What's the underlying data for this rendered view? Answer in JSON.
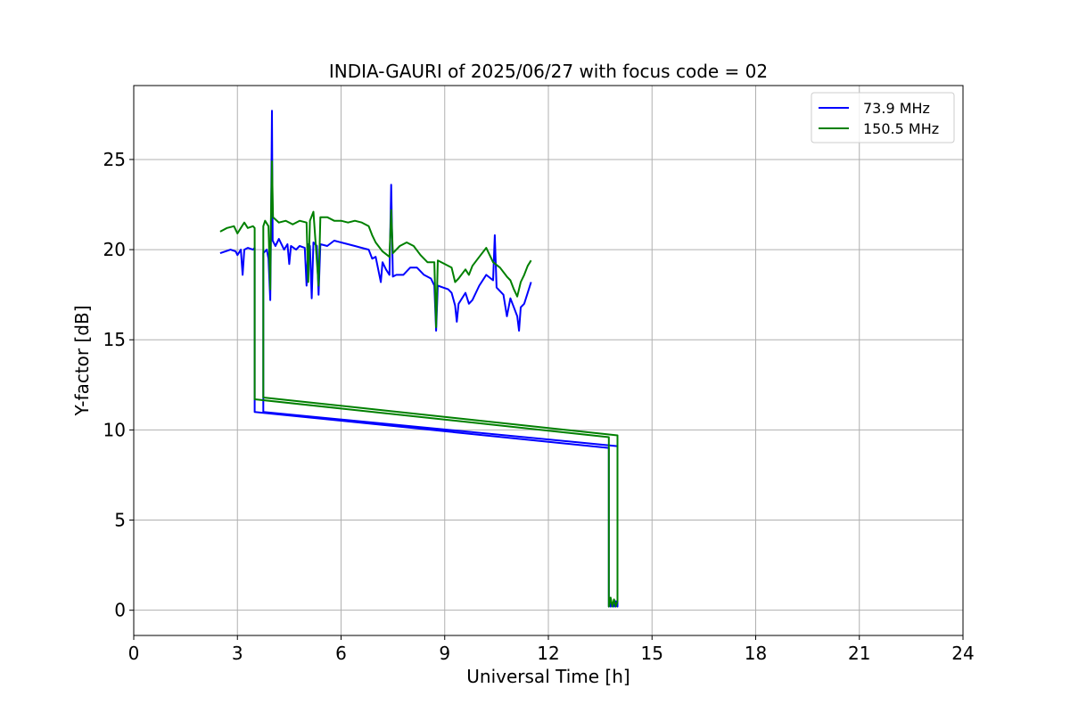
{
  "chart_data": {
    "type": "line",
    "title": "INDIA-GAURI of 2025/06/27 with focus code = 02",
    "xlabel": "Universal Time [h]",
    "ylabel": "Y-factor [dB]",
    "xlim": [
      0,
      24
    ],
    "ylim": [
      -1.4,
      29.1
    ],
    "xticks": [
      0,
      3,
      6,
      9,
      12,
      15,
      18,
      21,
      24
    ],
    "yticks": [
      0,
      5,
      10,
      15,
      20,
      25
    ],
    "grid": true,
    "legend_position": "top-right",
    "series": [
      {
        "name": " 73.9 MHz",
        "color": "#0000ff",
        "points": [
          [
            2.5,
            19.8
          ],
          [
            2.8,
            20.0
          ],
          [
            2.95,
            19.9
          ],
          [
            3.0,
            19.7
          ],
          [
            3.1,
            20.0
          ],
          [
            3.15,
            18.6
          ],
          [
            3.2,
            20.0
          ],
          [
            3.3,
            20.1
          ],
          [
            3.45,
            20.0
          ],
          [
            3.5,
            20.1
          ],
          [
            3.5,
            11.0
          ],
          [
            13.75,
            9.0
          ],
          [
            13.75,
            0.2
          ],
          [
            13.78,
            0.6
          ],
          [
            13.8,
            0.2
          ],
          [
            13.85,
            0.4
          ],
          [
            13.9,
            0.2
          ],
          [
            13.95,
            0.5
          ],
          [
            14.0,
            0.2
          ],
          [
            14.0,
            9.1
          ],
          [
            3.75,
            11.0
          ],
          [
            3.75,
            19.8
          ],
          [
            3.85,
            20.0
          ],
          [
            3.9,
            19.5
          ],
          [
            3.95,
            17.2
          ],
          [
            3.97,
            20.4
          ],
          [
            4.0,
            27.7
          ],
          [
            4.02,
            20.5
          ],
          [
            4.1,
            20.2
          ],
          [
            4.2,
            20.6
          ],
          [
            4.35,
            20.0
          ],
          [
            4.45,
            20.3
          ],
          [
            4.5,
            19.2
          ],
          [
            4.55,
            20.2
          ],
          [
            4.7,
            20.0
          ],
          [
            4.8,
            20.2
          ],
          [
            4.95,
            20.1
          ],
          [
            5.0,
            18.0
          ],
          [
            5.05,
            20.3
          ],
          [
            5.1,
            20.2
          ],
          [
            5.15,
            17.3
          ],
          [
            5.2,
            20.4
          ],
          [
            5.3,
            20.2
          ],
          [
            5.35,
            17.5
          ],
          [
            5.4,
            20.3
          ],
          [
            5.6,
            20.2
          ],
          [
            5.8,
            20.5
          ],
          [
            6.0,
            20.4
          ],
          [
            6.2,
            20.3
          ],
          [
            6.4,
            20.2
          ],
          [
            6.6,
            20.1
          ],
          [
            6.8,
            20.0
          ],
          [
            6.9,
            19.5
          ],
          [
            7.0,
            19.6
          ],
          [
            7.15,
            18.2
          ],
          [
            7.2,
            19.3
          ],
          [
            7.3,
            18.9
          ],
          [
            7.4,
            18.6
          ],
          [
            7.45,
            23.6
          ],
          [
            7.5,
            18.5
          ],
          [
            7.6,
            18.6
          ],
          [
            7.8,
            18.6
          ],
          [
            8.0,
            19.0
          ],
          [
            8.2,
            19.0
          ],
          [
            8.4,
            18.6
          ],
          [
            8.6,
            18.4
          ],
          [
            8.7,
            18.0
          ],
          [
            8.75,
            15.5
          ],
          [
            8.8,
            18.0
          ],
          [
            8.95,
            17.9
          ],
          [
            9.1,
            17.8
          ],
          [
            9.2,
            17.6
          ],
          [
            9.3,
            16.9
          ],
          [
            9.35,
            16.0
          ],
          [
            9.4,
            17.0
          ],
          [
            9.6,
            17.6
          ],
          [
            9.7,
            17.0
          ],
          [
            9.8,
            17.2
          ],
          [
            10.0,
            18.0
          ],
          [
            10.2,
            18.6
          ],
          [
            10.4,
            18.3
          ],
          [
            10.45,
            20.8
          ],
          [
            10.5,
            17.9
          ],
          [
            10.7,
            17.5
          ],
          [
            10.8,
            16.3
          ],
          [
            10.9,
            17.3
          ],
          [
            11.0,
            16.8
          ],
          [
            11.1,
            16.3
          ],
          [
            11.15,
            15.5
          ],
          [
            11.2,
            16.8
          ],
          [
            11.3,
            17.0
          ],
          [
            11.4,
            17.6
          ],
          [
            11.5,
            18.2
          ]
        ]
      },
      {
        "name": "150.5 MHz",
        "color": "#008000",
        "points": [
          [
            2.5,
            21.0
          ],
          [
            2.7,
            21.2
          ],
          [
            2.9,
            21.3
          ],
          [
            3.0,
            20.9
          ],
          [
            3.1,
            21.2
          ],
          [
            3.2,
            21.5
          ],
          [
            3.3,
            21.2
          ],
          [
            3.45,
            21.3
          ],
          [
            3.5,
            21.2
          ],
          [
            3.5,
            11.7
          ],
          [
            13.75,
            9.6
          ],
          [
            13.75,
            0.2
          ],
          [
            13.8,
            0.7
          ],
          [
            13.85,
            0.2
          ],
          [
            13.9,
            0.6
          ],
          [
            13.95,
            0.2
          ],
          [
            14.0,
            0.5
          ],
          [
            14.0,
            9.7
          ],
          [
            3.75,
            11.8
          ],
          [
            3.75,
            21.3
          ],
          [
            3.8,
            21.6
          ],
          [
            3.9,
            21.3
          ],
          [
            3.95,
            17.8
          ],
          [
            3.97,
            21.5
          ],
          [
            4.0,
            24.9
          ],
          [
            4.03,
            21.8
          ],
          [
            4.2,
            21.5
          ],
          [
            4.4,
            21.6
          ],
          [
            4.6,
            21.4
          ],
          [
            4.8,
            21.6
          ],
          [
            5.0,
            21.5
          ],
          [
            5.05,
            18.2
          ],
          [
            5.1,
            21.6
          ],
          [
            5.2,
            22.1
          ],
          [
            5.35,
            18.0
          ],
          [
            5.4,
            21.8
          ],
          [
            5.6,
            21.8
          ],
          [
            5.8,
            21.6
          ],
          [
            6.0,
            21.6
          ],
          [
            6.2,
            21.5
          ],
          [
            6.4,
            21.6
          ],
          [
            6.6,
            21.5
          ],
          [
            6.8,
            21.3
          ],
          [
            6.9,
            20.8
          ],
          [
            7.0,
            20.4
          ],
          [
            7.2,
            19.9
          ],
          [
            7.4,
            19.6
          ],
          [
            7.45,
            22.2
          ],
          [
            7.5,
            19.8
          ],
          [
            7.7,
            20.2
          ],
          [
            7.9,
            20.4
          ],
          [
            8.1,
            20.2
          ],
          [
            8.3,
            19.7
          ],
          [
            8.5,
            19.3
          ],
          [
            8.7,
            19.3
          ],
          [
            8.75,
            15.7
          ],
          [
            8.8,
            19.4
          ],
          [
            9.0,
            19.2
          ],
          [
            9.2,
            19.0
          ],
          [
            9.3,
            18.2
          ],
          [
            9.4,
            18.4
          ],
          [
            9.6,
            18.9
          ],
          [
            9.7,
            18.6
          ],
          [
            9.8,
            19.1
          ],
          [
            10.0,
            19.6
          ],
          [
            10.2,
            20.1
          ],
          [
            10.4,
            19.3
          ],
          [
            10.6,
            19.0
          ],
          [
            10.8,
            18.5
          ],
          [
            10.9,
            18.3
          ],
          [
            11.0,
            17.8
          ],
          [
            11.1,
            17.4
          ],
          [
            11.2,
            18.2
          ],
          [
            11.3,
            18.6
          ],
          [
            11.4,
            19.1
          ],
          [
            11.5,
            19.4
          ]
        ]
      }
    ]
  }
}
